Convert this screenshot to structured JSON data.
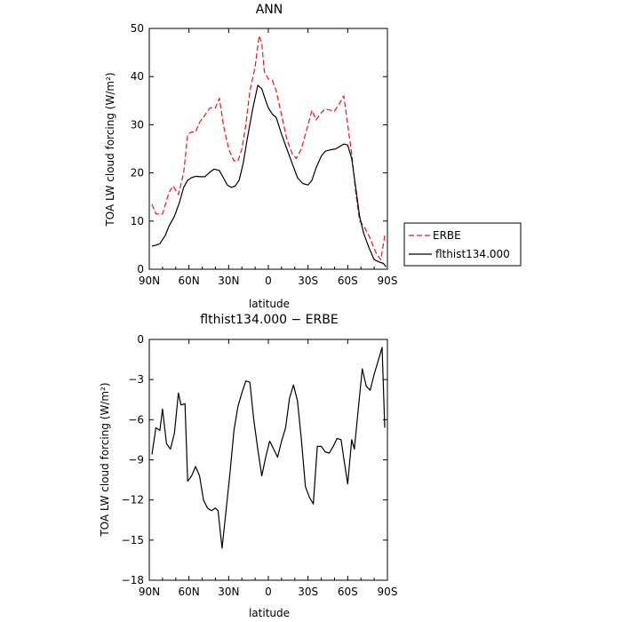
{
  "chart_data": [
    {
      "type": "line",
      "title": "ANN",
      "xlabel": "latitude",
      "ylabel": "TOA LW cloud forcing (W/m²)",
      "xlim": [
        90,
        -90
      ],
      "ylim": [
        0,
        50
      ],
      "xticks": [
        90,
        60,
        30,
        0,
        -30,
        -60,
        -90
      ],
      "xtick_labels": [
        "90N",
        "60N",
        "30N",
        "0",
        "30S",
        "60S",
        "90S"
      ],
      "yticks": [
        0,
        10,
        20,
        30,
        40,
        50
      ],
      "ytick_labels": [
        "0",
        "10",
        "20",
        "30",
        "40",
        "50"
      ],
      "legend_position": "right",
      "series": [
        {
          "name": "ERBE",
          "color": "#e8141b",
          "dash": "dashed",
          "x": [
            88,
            85,
            80,
            75,
            72,
            68,
            64,
            61,
            58,
            55,
            52,
            48,
            44,
            40,
            37,
            34,
            30,
            26,
            23,
            20,
            17,
            14,
            10,
            7,
            5,
            3,
            0,
            -3,
            -6,
            -10,
            -14,
            -18,
            -21,
            -25,
            -29,
            -33,
            -36,
            -40,
            -43,
            -47,
            -50,
            -54,
            -57,
            -60,
            -63,
            -66,
            -69,
            -72,
            -76,
            -79,
            -82,
            -85,
            -88
          ],
          "y": [
            13.5,
            11.5,
            11.5,
            16,
            17.3,
            15.5,
            20,
            28,
            28.5,
            28.5,
            30.5,
            32,
            33.5,
            33.5,
            35.5,
            30,
            25,
            22.5,
            22.5,
            25,
            30,
            37,
            42,
            48.5,
            47,
            41,
            39.5,
            39.2,
            37,
            32,
            27,
            24,
            23,
            25,
            29,
            33,
            31,
            32.5,
            33.3,
            33,
            32.8,
            34.5,
            36,
            30,
            24,
            16,
            10,
            9,
            7,
            5,
            3,
            2,
            7
          ]
        },
        {
          "name": "flthist134.000",
          "color": "#000000",
          "dash": "solid",
          "x": [
            88,
            85,
            82,
            78,
            75,
            71,
            67,
            64,
            61,
            58,
            55,
            52,
            48,
            44,
            41,
            37,
            34,
            31,
            28,
            25,
            22,
            19,
            16,
            12,
            8,
            5,
            2,
            0,
            -3,
            -6,
            -10,
            -14,
            -18,
            -22,
            -26,
            -30,
            -33,
            -36,
            -40,
            -43,
            -47,
            -51,
            -54,
            -57,
            -60,
            -63,
            -66,
            -69,
            -72,
            -76,
            -80,
            -84,
            -87,
            -89
          ],
          "y": [
            4.8,
            5.0,
            5.3,
            7,
            9,
            11,
            14,
            17,
            18.5,
            19,
            19.3,
            19.2,
            19.2,
            20.2,
            20.8,
            20.5,
            19,
            17.5,
            17,
            17.3,
            18.5,
            22,
            27,
            33,
            38.2,
            37.5,
            35,
            33.5,
            32.2,
            31.5,
            28,
            25,
            22,
            19,
            17.8,
            17.5,
            18.5,
            21,
            23.5,
            24.5,
            24.8,
            25,
            25.5,
            26,
            25.8,
            23,
            17,
            11,
            7.5,
            4.5,
            2,
            1.5,
            1.2,
            0.5
          ]
        }
      ]
    },
    {
      "type": "line",
      "title": "flthist134.000 − ERBE",
      "xlabel": "latitude",
      "ylabel": "TOA LW cloud forcing (W/m²)",
      "xlim": [
        90,
        -90
      ],
      "ylim": [
        -18,
        0
      ],
      "xticks": [
        90,
        60,
        30,
        0,
        -30,
        -60,
        -90
      ],
      "xtick_labels": [
        "90N",
        "60N",
        "30N",
        "0",
        "30S",
        "60S",
        "90S"
      ],
      "yticks": [
        0,
        -3,
        -6,
        -9,
        -12,
        -15,
        -18
      ],
      "ytick_labels": [
        "0",
        "−3",
        "−6",
        "−9",
        "−12",
        "−15",
        "−18"
      ],
      "series": [
        {
          "color": "#000000",
          "dash": "solid",
          "x": [
            88,
            85,
            82,
            80,
            77,
            74,
            71,
            68,
            66,
            63,
            61,
            58,
            55,
            52,
            49,
            46,
            43,
            40,
            38,
            35,
            32,
            29,
            26,
            23,
            20,
            17,
            14,
            11,
            8,
            5,
            2,
            -1,
            -4,
            -7,
            -10,
            -13,
            -16,
            -19,
            -22,
            -25,
            -28,
            -31,
            -34,
            -37,
            -40,
            -43,
            -46,
            -49,
            -52,
            -55,
            -57,
            -60,
            -63,
            -65,
            -68,
            -71,
            -74,
            -77,
            -80,
            -83,
            -86,
            -88
          ],
          "y": [
            -8.6,
            -6.6,
            -6.8,
            -5.2,
            -7.8,
            -8.2,
            -7,
            -4,
            -4.9,
            -4.8,
            -10.6,
            -10.2,
            -9.5,
            -10.2,
            -12,
            -12.6,
            -12.8,
            -12.6,
            -12.8,
            -15.6,
            -12.8,
            -10,
            -6.8,
            -5,
            -4,
            -3.1,
            -3.2,
            -6,
            -8.2,
            -10.2,
            -8.8,
            -7.6,
            -8.2,
            -8.8,
            -7.6,
            -6.6,
            -4.4,
            -3.4,
            -4.6,
            -7.5,
            -11,
            -11.8,
            -12.3,
            -8,
            -8,
            -8.4,
            -8.5,
            -8,
            -7.4,
            -7.5,
            -8.9,
            -10.8,
            -7.5,
            -8.2,
            -5.2,
            -2.2,
            -3.5,
            -3.8,
            -2.6,
            -1.6,
            -0.6,
            -6.6
          ]
        }
      ]
    }
  ]
}
